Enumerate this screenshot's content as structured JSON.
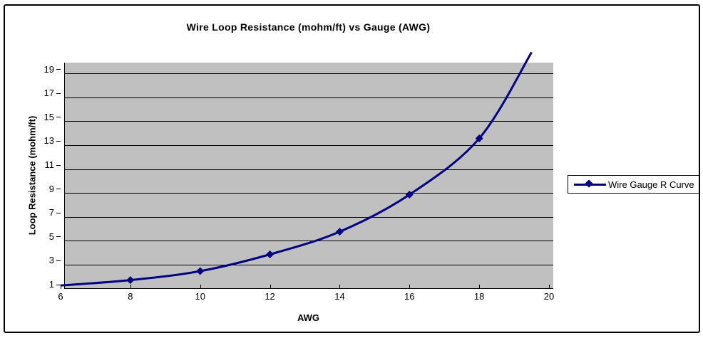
{
  "chart": {
    "title": "Wire Loop Resistance (mohm/ft) vs Gauge (AWG)",
    "xlabel": "AWG",
    "ylabel": "Loop Resistance (mohm/ft)",
    "legend_label": "Wire Gauge R Curve"
  },
  "colors": {
    "series": "#000080",
    "plot_background": "#C0C0C0",
    "gridline": "#000000",
    "axis": "#000000",
    "text": "#000000",
    "frame_border": "#000000",
    "background": "#FFFFFF"
  },
  "chart_data": {
    "type": "line",
    "title": "Wire Loop Resistance (mohm/ft) vs Gauge (AWG)",
    "xlabel": "AWG",
    "ylabel": "Loop Resistance (mohm/ft)",
    "legend_entries": [
      "Wire Gauge R Curve"
    ],
    "legend_position": "right",
    "x": [
      6,
      8,
      10,
      12,
      14,
      16,
      18,
      19.5
    ],
    "values": [
      0.9,
      1.35,
      2.1,
      3.5,
      5.4,
      8.5,
      13.2,
      20.4
    ],
    "marker_indices": [
      1,
      2,
      3,
      4,
      5,
      6
    ],
    "marker": "diamond",
    "smooth": true,
    "xlim": [
      6,
      20
    ],
    "ylim": [
      1,
      20
    ],
    "xticks": [
      6,
      8,
      10,
      12,
      14,
      16,
      18,
      20
    ],
    "yticks": [
      1,
      3,
      5,
      7,
      9,
      11,
      13,
      15,
      17,
      19
    ],
    "grid": "horizontal",
    "note": "Curve rises off the top of the plot area near AWG 19.5; diamond markers at even gauges 8-18."
  }
}
